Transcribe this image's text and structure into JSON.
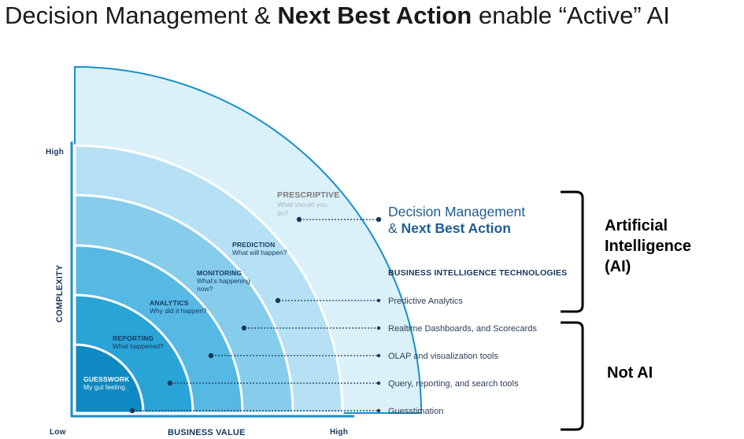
{
  "title": {
    "part1": "Decision Management & ",
    "part2": "Next Best Action",
    "part3": " enable “Active” AI"
  },
  "axes": {
    "y_title": "COMPLEXITY",
    "y_high": "High",
    "x_low": "Low",
    "x_title": "BUSINESS VALUE",
    "x_high": "High"
  },
  "levels": [
    {
      "name": "GUESSWORK",
      "desc": [
        "My gut feeling."
      ]
    },
    {
      "name": "REPORTING",
      "desc": [
        "What happened?"
      ]
    },
    {
      "name": "ANALYTICS",
      "desc": [
        "Why did it happen?"
      ]
    },
    {
      "name": "MONITORING",
      "desc": [
        "What’s happening",
        "now?"
      ]
    },
    {
      "name": "PREDICTION",
      "desc": [
        "What will happen?"
      ]
    },
    {
      "name": "PRESCRIPTIVE",
      "desc": [
        "What should you",
        "do?"
      ]
    }
  ],
  "decision": {
    "line1": "Decision Management",
    "line2_prefix": "& ",
    "line2_bold": "Next Best Action"
  },
  "bi_heading": "BUSINESS INTELLIGENCE TECHNOLOGIES",
  "technologies": [
    "Predictive Analytics",
    "Realtime Dashboards, and Scorecards",
    "OLAP and visualization tools",
    "Query, reporting, and search tools",
    "Guesstimation"
  ],
  "brackets": {
    "ai": [
      "Artificial",
      "Intelligence",
      "(AI)"
    ],
    "not_ai": "Not AI"
  },
  "colors": {
    "band1": "#0f89c2",
    "band2": "#2aa3d7",
    "band3": "#56b9e3",
    "band4": "#86cdec",
    "band5": "#b6e0f4",
    "band6": "#daf1fa",
    "axis": "#1a8fca",
    "navy": "#17375e"
  }
}
